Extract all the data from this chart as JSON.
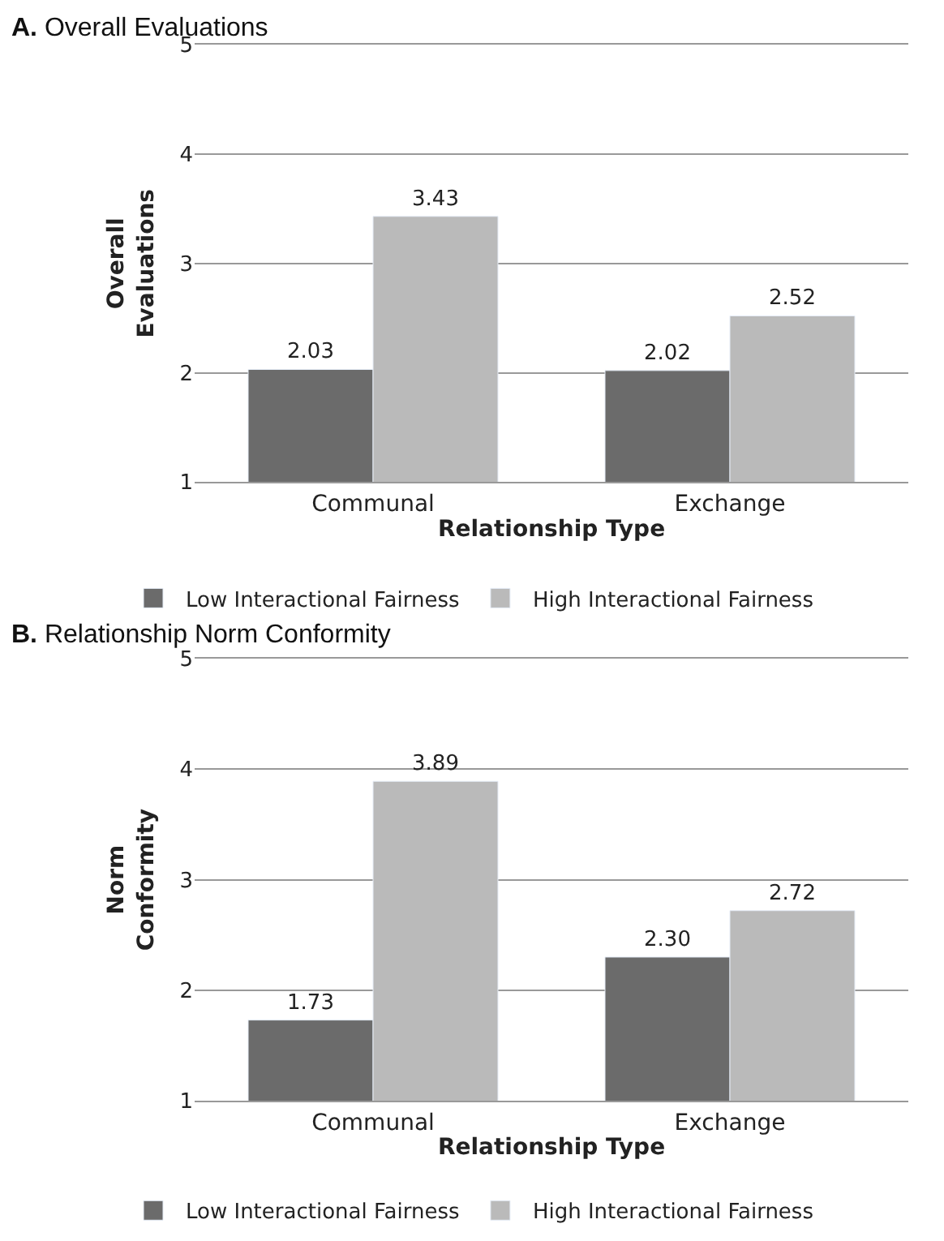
{
  "chart_data": [
    {
      "type": "bar",
      "title": "A. Overall Evaluations",
      "xlabel": "Relationship Type",
      "ylabel": "Overall Evaluations",
      "categories": [
        "Communal",
        "Exchange"
      ],
      "series": [
        {
          "name": "Low Interactional Fairness",
          "color": "#6b6b6b",
          "values": [
            2.03,
            2.02
          ],
          "value_labels": [
            "2.03",
            "2.02"
          ]
        },
        {
          "name": "High Interactional Fairness",
          "color": "#bababa",
          "values": [
            3.43,
            2.52
          ],
          "value_labels": [
            "3.43",
            "2.52"
          ]
        }
      ],
      "ylim": [
        1,
        5
      ],
      "yticks": [
        1,
        2,
        3,
        4,
        5
      ],
      "grid": "y",
      "legend": "bottom"
    },
    {
      "type": "bar",
      "title": "B. Relationship Norm Conformity",
      "xlabel": "Relationship Type",
      "ylabel": "Norm Conformity",
      "categories": [
        "Communal",
        "Exchange"
      ],
      "series": [
        {
          "name": "Low Interactional Fairness",
          "color": "#6b6b6b",
          "values": [
            1.73,
            2.3
          ],
          "value_labels": [
            "1.73",
            "2.30"
          ]
        },
        {
          "name": "High Interactional Fairness",
          "color": "#bababa",
          "values": [
            3.89,
            2.72
          ],
          "value_labels": [
            "3.89",
            "2.72"
          ]
        }
      ],
      "ylim": [
        1,
        5
      ],
      "yticks": [
        1,
        2,
        3,
        4,
        5
      ],
      "grid": "y",
      "legend": "bottom"
    }
  ]
}
